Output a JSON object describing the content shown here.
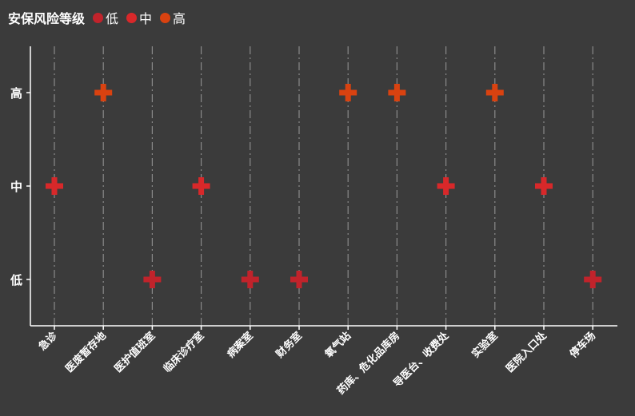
{
  "legend": {
    "title": "安保风险等级",
    "items": [
      {
        "label": "低",
        "color": "#c1232b"
      },
      {
        "label": "中",
        "color": "#d8282a"
      },
      {
        "label": "高",
        "color": "#d94210"
      }
    ]
  },
  "chart_data": {
    "type": "scatter",
    "title": "安保风险等级",
    "categories": [
      "急诊",
      "医废暂存地",
      "医护值班室",
      "临床诊疗室",
      "病案室",
      "财务室",
      "氧气站",
      "药库、危化品库房",
      "导医台、收费处",
      "实验室",
      "医院入口处",
      "停车场"
    ],
    "levels": [
      "低",
      "中",
      "高"
    ],
    "values": [
      "中",
      "高",
      "低",
      "中",
      "低",
      "低",
      "高",
      "高",
      "中",
      "高",
      "中",
      "低"
    ],
    "marker": "cross",
    "grid": "vertical dashed",
    "legend_position": "top-left"
  }
}
